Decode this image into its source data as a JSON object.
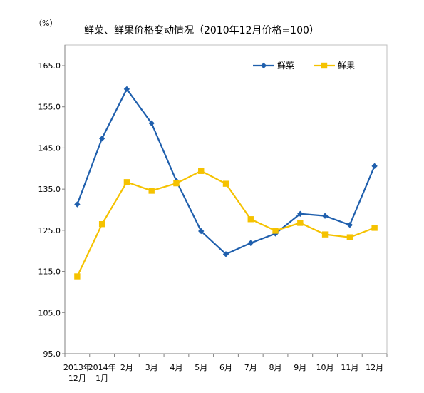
{
  "chart_data": {
    "type": "line",
    "title": "鲜菜、鲜果价格变动情况（2010年12月价格=100）",
    "unit_label": "（%）",
    "categories": [
      [
        "2013年",
        "12月"
      ],
      [
        "2014年",
        "1月"
      ],
      [
        "2月"
      ],
      [
        "3月"
      ],
      [
        "4月"
      ],
      [
        "5月"
      ],
      [
        "6月"
      ],
      [
        "7月"
      ],
      [
        "8月"
      ],
      [
        "9月"
      ],
      [
        "10月"
      ],
      [
        "11月"
      ],
      [
        "12月"
      ]
    ],
    "yticks": [
      "165.0",
      "155.0",
      "145.0",
      "135.0",
      "125.0",
      "115.0",
      "105.0",
      "95.0"
    ],
    "ylim": [
      95,
      165
    ],
    "grid": false,
    "legend_position": "top-right",
    "series": [
      {
        "name": "鲜菜",
        "color": "#1F5FAD",
        "marker": "diamond",
        "values": [
          131.3,
          147.3,
          159.3,
          151.0,
          137.0,
          124.8,
          119.2,
          121.9,
          124.2,
          129.0,
          128.5,
          126.3,
          140.6
        ]
      },
      {
        "name": "鲜果",
        "color": "#F5C200",
        "marker": "square",
        "values": [
          113.8,
          126.5,
          136.7,
          134.6,
          136.4,
          139.4,
          136.3,
          127.7,
          124.9,
          126.8,
          124.0,
          123.3,
          125.6
        ]
      }
    ]
  }
}
